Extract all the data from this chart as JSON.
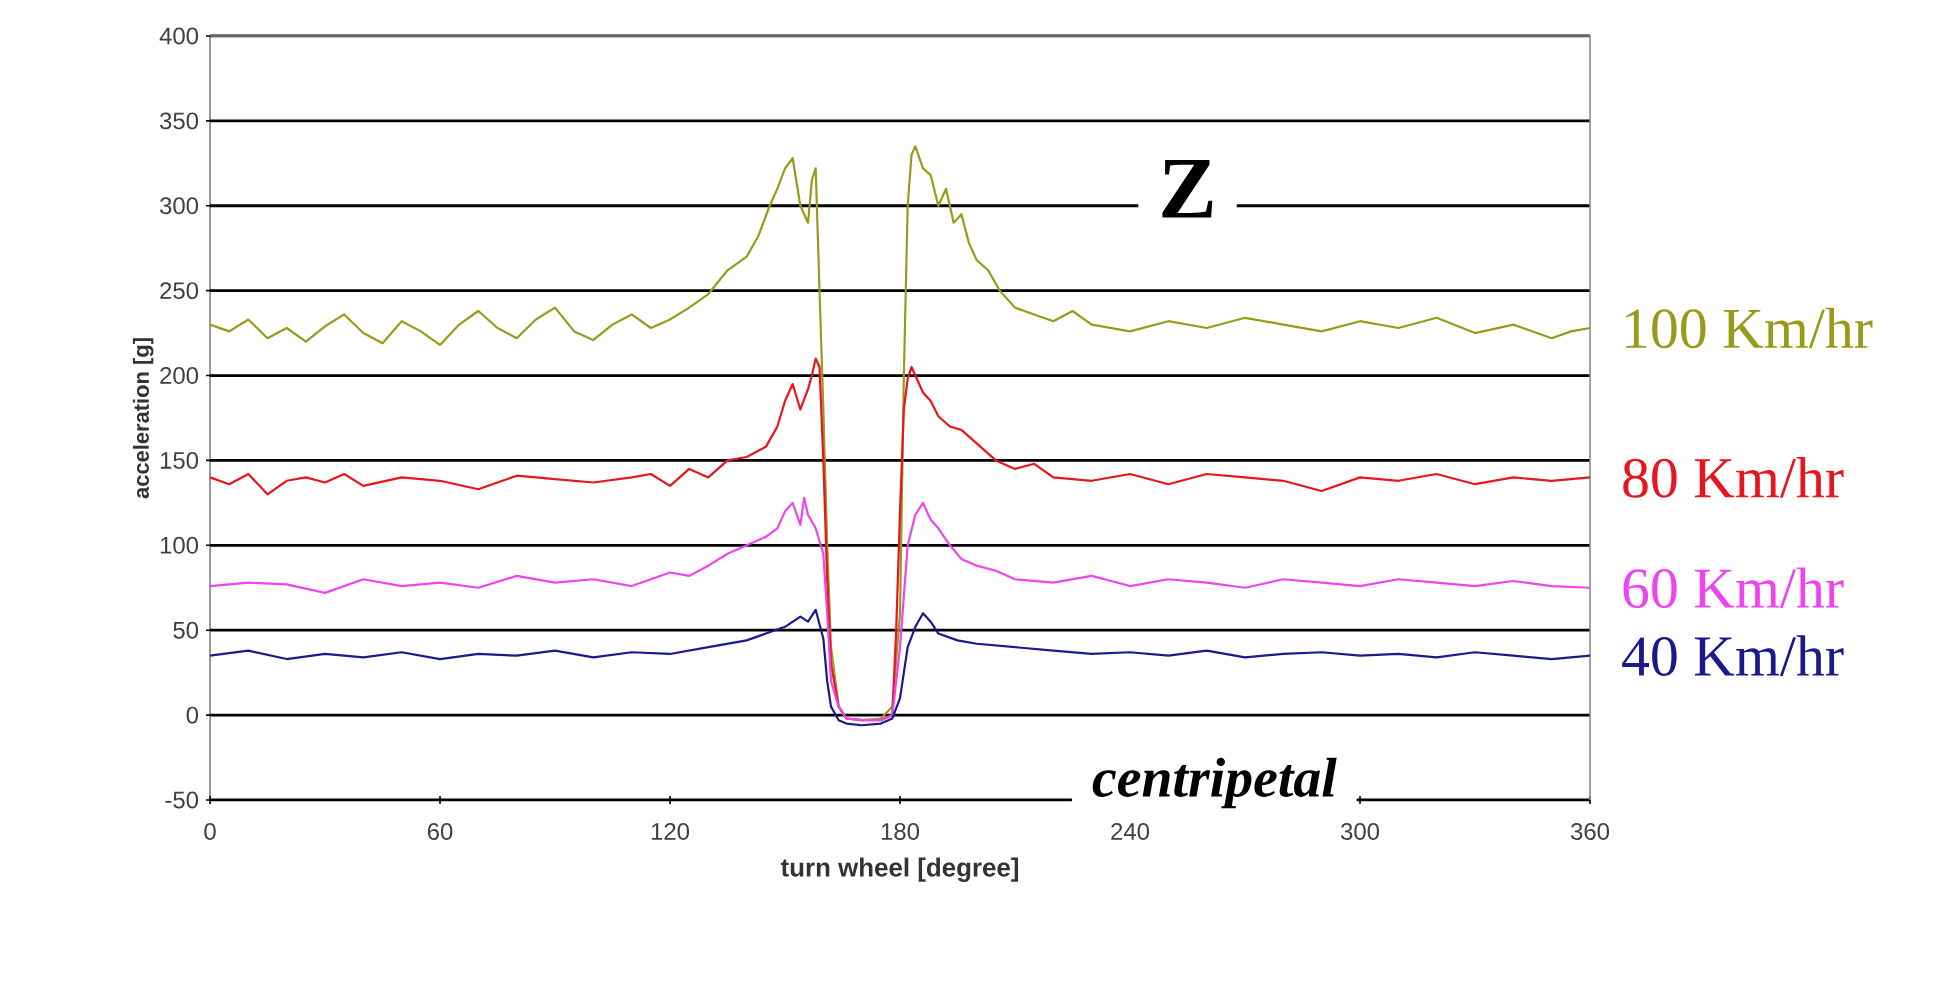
{
  "chart_data": {
    "type": "line",
    "xlabel": "turn wheel [degree]",
    "ylabel": "acceleration [g]",
    "annotations": [
      "Z",
      "centripetal"
    ],
    "xlim": [
      0,
      360
    ],
    "xticks": [
      0,
      60,
      120,
      180,
      240,
      300,
      360
    ],
    "ylim": [
      -50,
      400
    ],
    "yticks": [
      -50,
      0,
      50,
      100,
      150,
      200,
      250,
      300,
      350,
      400
    ],
    "grid": "y",
    "marker": "none",
    "line_style": "solid",
    "series": [
      {
        "name": "100 Km/hr",
        "color": "#9a9a1a",
        "x": [
          0,
          5,
          10,
          15,
          20,
          25,
          30,
          35,
          40,
          45,
          50,
          55,
          60,
          65,
          70,
          75,
          80,
          85,
          90,
          95,
          100,
          105,
          110,
          115,
          120,
          125,
          130,
          135,
          140,
          143,
          146,
          148,
          150,
          152,
          154,
          156,
          157,
          158,
          159,
          160,
          161,
          162,
          164,
          166,
          170,
          175,
          178,
          180,
          181,
          182,
          183,
          184,
          186,
          188,
          190,
          192,
          194,
          196,
          198,
          200,
          203,
          206,
          210,
          215,
          220,
          225,
          230,
          240,
          250,
          260,
          270,
          280,
          290,
          300,
          310,
          320,
          330,
          340,
          350,
          355,
          360
        ],
        "values": [
          230,
          226,
          233,
          222,
          228,
          220,
          229,
          236,
          225,
          219,
          232,
          226,
          218,
          230,
          238,
          228,
          222,
          233,
          240,
          226,
          221,
          230,
          236,
          228,
          233,
          240,
          248,
          262,
          270,
          282,
          300,
          310,
          322,
          328,
          300,
          290,
          315,
          322,
          250,
          180,
          100,
          40,
          5,
          -2,
          -3,
          -2,
          5,
          60,
          200,
          300,
          330,
          335,
          322,
          318,
          300,
          310,
          290,
          295,
          278,
          268,
          262,
          250,
          240,
          236,
          232,
          238,
          230,
          226,
          232,
          228,
          234,
          230,
          226,
          232,
          228,
          234,
          225,
          230,
          222,
          226,
          228
        ]
      },
      {
        "name": "80 Km/hr",
        "color": "#e8141e",
        "x": [
          0,
          5,
          10,
          15,
          20,
          25,
          30,
          35,
          40,
          50,
          60,
          70,
          80,
          90,
          100,
          110,
          115,
          120,
          125,
          130,
          135,
          140,
          145,
          148,
          150,
          152,
          154,
          156,
          157,
          158,
          159,
          160,
          161,
          162,
          164,
          166,
          170,
          175,
          178,
          179,
          180,
          181,
          182,
          183,
          184,
          186,
          188,
          190,
          193,
          196,
          200,
          205,
          210,
          215,
          220,
          230,
          240,
          250,
          260,
          270,
          280,
          290,
          300,
          310,
          320,
          330,
          340,
          350,
          360
        ],
        "values": [
          140,
          136,
          142,
          130,
          138,
          140,
          137,
          142,
          135,
          140,
          138,
          133,
          141,
          139,
          137,
          140,
          142,
          135,
          145,
          140,
          150,
          152,
          158,
          170,
          185,
          195,
          180,
          192,
          200,
          210,
          205,
          150,
          80,
          30,
          5,
          -2,
          -3,
          -3,
          0,
          50,
          120,
          180,
          198,
          205,
          200,
          190,
          185,
          176,
          170,
          168,
          160,
          150,
          145,
          148,
          140,
          138,
          142,
          136,
          142,
          140,
          138,
          132,
          140,
          138,
          142,
          136,
          140,
          138,
          140
        ]
      },
      {
        "name": "60 Km/hr",
        "color": "#ee44ee",
        "x": [
          0,
          10,
          20,
          30,
          40,
          50,
          60,
          70,
          80,
          90,
          100,
          110,
          120,
          125,
          130,
          135,
          140,
          145,
          148,
          150,
          152,
          154,
          155,
          156,
          158,
          160,
          161,
          162,
          164,
          166,
          170,
          175,
          178,
          180,
          182,
          184,
          186,
          188,
          190,
          193,
          196,
          200,
          205,
          210,
          220,
          230,
          240,
          250,
          260,
          270,
          280,
          290,
          300,
          310,
          320,
          330,
          340,
          350,
          360
        ],
        "values": [
          76,
          78,
          77,
          72,
          80,
          76,
          78,
          75,
          82,
          78,
          80,
          76,
          84,
          82,
          88,
          95,
          100,
          105,
          110,
          120,
          125,
          112,
          128,
          118,
          110,
          95,
          60,
          20,
          5,
          -2,
          -3,
          -3,
          0,
          40,
          100,
          118,
          125,
          115,
          110,
          100,
          92,
          88,
          85,
          80,
          78,
          82,
          76,
          80,
          78,
          75,
          80,
          78,
          76,
          80,
          78,
          76,
          79,
          76,
          75
        ]
      },
      {
        "name": "40 Km/hr",
        "color": "#1a1a8c",
        "x": [
          0,
          10,
          20,
          30,
          40,
          50,
          60,
          70,
          80,
          90,
          100,
          110,
          120,
          130,
          140,
          145,
          150,
          154,
          156,
          158,
          160,
          161,
          162,
          164,
          166,
          170,
          175,
          178,
          180,
          182,
          184,
          186,
          188,
          190,
          195,
          200,
          210,
          220,
          230,
          240,
          250,
          260,
          270,
          280,
          290,
          300,
          310,
          320,
          330,
          340,
          350,
          360
        ],
        "values": [
          35,
          38,
          33,
          36,
          34,
          37,
          33,
          36,
          35,
          38,
          34,
          37,
          36,
          40,
          44,
          48,
          52,
          58,
          55,
          62,
          45,
          20,
          5,
          -3,
          -5,
          -6,
          -5,
          -2,
          10,
          40,
          52,
          60,
          55,
          48,
          44,
          42,
          40,
          38,
          36,
          37,
          35,
          38,
          34,
          36,
          37,
          35,
          36,
          34,
          37,
          35,
          33,
          35
        ]
      }
    ]
  }
}
